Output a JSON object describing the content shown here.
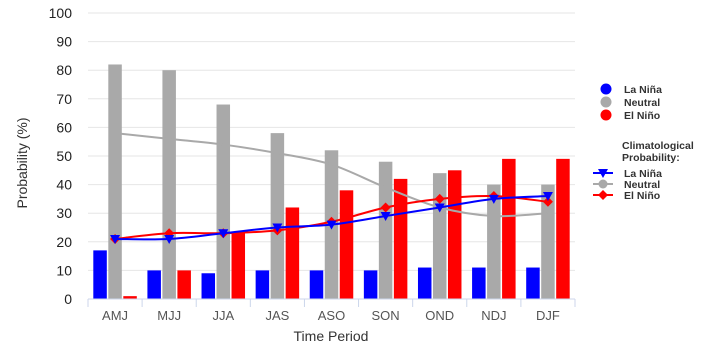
{
  "chart_data": {
    "type": "bar",
    "categories": [
      "AMJ",
      "MJJ",
      "JJA",
      "JAS",
      "ASO",
      "SON",
      "OND",
      "NDJ",
      "DJF"
    ],
    "series": [
      {
        "name": "La Niña",
        "color": "#0000ff",
        "values": [
          17,
          10,
          9,
          10,
          10,
          10,
          11,
          11,
          11
        ]
      },
      {
        "name": "Neutral",
        "color": "#a9a9a9",
        "values": [
          82,
          80,
          68,
          58,
          52,
          48,
          44,
          40,
          40
        ]
      },
      {
        "name": "El Niño",
        "color": "#ff0000",
        "values": [
          1,
          10,
          23,
          32,
          38,
          42,
          45,
          49,
          49
        ]
      }
    ],
    "climatological": [
      {
        "name": "La Niña",
        "color": "#0000ff",
        "marker": "triangle-down",
        "values": [
          21,
          21,
          23,
          25,
          26,
          29,
          32,
          35,
          36
        ]
      },
      {
        "name": "Neutral",
        "color": "#a9a9a9",
        "marker": "circle",
        "values": [
          58,
          56,
          54,
          51,
          47,
          39,
          32,
          29,
          30
        ]
      },
      {
        "name": "El Niño",
        "color": "#ff0000",
        "marker": "diamond",
        "values": [
          21,
          23,
          23,
          24,
          27,
          32,
          35,
          36,
          34
        ]
      }
    ],
    "legend_title": "Climatological Probability:",
    "legend_position": "right",
    "xlabel": "Time Period",
    "ylabel": "Probability (%)",
    "ylim": [
      0,
      100
    ],
    "yticks": [
      0,
      10,
      20,
      30,
      40,
      50,
      60,
      70,
      80,
      90,
      100
    ],
    "grid": true
  }
}
